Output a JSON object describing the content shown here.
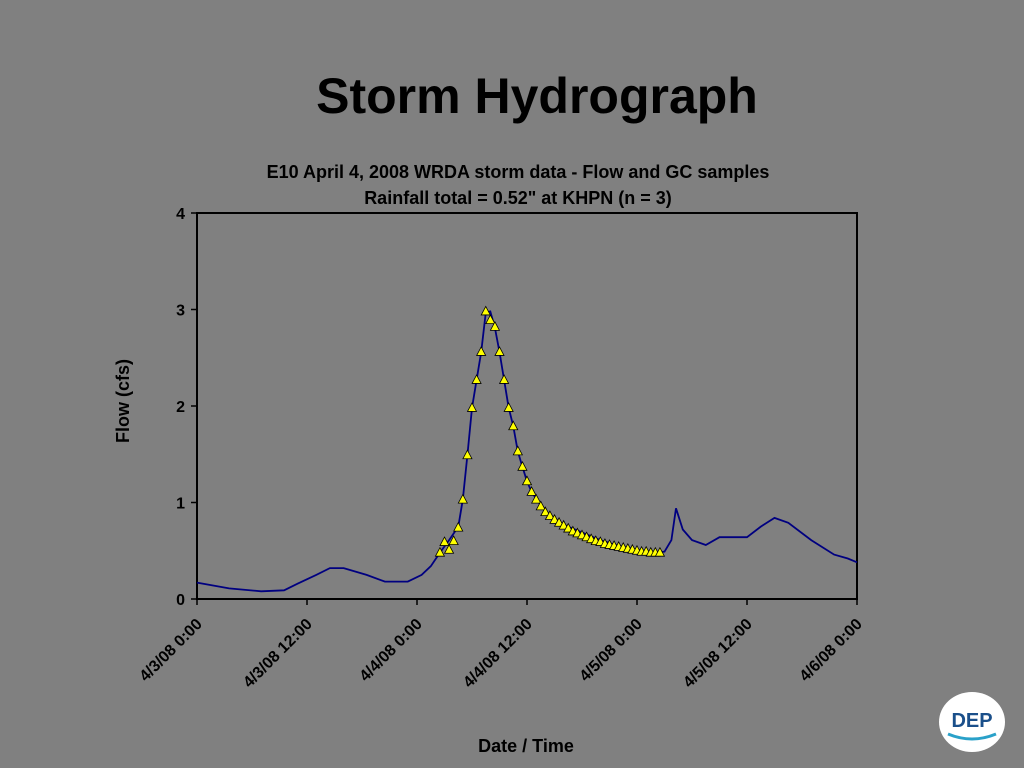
{
  "slide_title": "Storm Hydrograph",
  "logo_text": "DEP",
  "chart_data": {
    "type": "line",
    "title": "E10  April 4, 2008  WRDA storm data - Flow and GC samples",
    "subtitle": "Rainfall total = 0.52\" at KHPN  (n = 3)",
    "x_label": "Date / Time",
    "y_label": "Flow (cfs)",
    "xlim": [
      "4/3/08 0:00",
      "4/6/08 0:00"
    ],
    "xticks": [
      "4/3/08 0:00",
      "4/3/08 12:00",
      "4/4/08 0:00",
      "4/4/08 12:00",
      "4/5/08 0:00",
      "4/5/08 12:00",
      "4/6/08 0:00"
    ],
    "ylim": [
      0,
      4
    ],
    "yticks": [
      0,
      1,
      2,
      3,
      4
    ],
    "grid": false,
    "series": [
      {
        "color": "#000080",
        "marker": "none",
        "x": [
          "4/3/08 0:00",
          "4/3/08 3:30",
          "4/3/08 7:00",
          "4/3/08 9:30",
          "4/3/08 11:00",
          "4/3/08 13:00",
          "4/3/08 14:30",
          "4/3/08 16:00",
          "4/3/08 18:30",
          "4/3/08 20:30",
          "4/3/08 23:00",
          "4/4/08 0:30",
          "4/4/08 1:30",
          "4/4/08 2:30",
          "4/4/08 3:30",
          "4/4/08 4:30",
          "4/4/08 5:00",
          "4/4/08 5:30",
          "4/4/08 6:00",
          "4/4/08 6:30",
          "4/4/08 7:00",
          "4/4/08 7:30",
          "4/4/08 8:00",
          "4/4/08 8:30",
          "4/4/08 9:00",
          "4/4/08 9:30",
          "4/4/08 10:00",
          "4/4/08 10:30",
          "4/4/08 11:00",
          "4/4/08 11:30",
          "4/4/08 12:00",
          "4/4/08 12:30",
          "4/4/08 13:30",
          "4/4/08 14:30",
          "4/4/08 16:00",
          "4/4/08 18:00",
          "4/4/08 20:00",
          "4/4/08 22:00",
          "4/5/08 0:00",
          "4/5/08 2:00",
          "4/5/08 3:00",
          "4/5/08 3:45",
          "4/5/08 4:15",
          "4/5/08 5:00",
          "4/5/08 6:00",
          "4/5/08 7:30",
          "4/5/08 9:00",
          "4/5/08 12:00",
          "4/5/08 13:30",
          "4/5/08 15:00",
          "4/5/08 16:30",
          "4/5/08 19:00",
          "4/5/08 21:30",
          "4/5/08 23:00",
          "4/6/08 0:00"
        ],
        "values": [
          0.17,
          0.11,
          0.08,
          0.09,
          0.16,
          0.25,
          0.32,
          0.32,
          0.25,
          0.18,
          0.18,
          0.25,
          0.34,
          0.48,
          0.61,
          0.75,
          1.03,
          1.49,
          1.98,
          2.27,
          2.56,
          2.97,
          2.98,
          2.81,
          2.56,
          2.27,
          1.98,
          1.79,
          1.53,
          1.37,
          1.22,
          1.11,
          0.97,
          0.87,
          0.77,
          0.69,
          0.61,
          0.55,
          0.51,
          0.48,
          0.49,
          0.61,
          0.94,
          0.72,
          0.61,
          0.56,
          0.64,
          0.64,
          0.75,
          0.84,
          0.79,
          0.61,
          0.46,
          0.42,
          0.38
        ]
      },
      {
        "color": "#ffff00",
        "marker": "triangle",
        "x": [
          "4/4/08 2:30",
          "4/4/08 3:00",
          "4/4/08 3:30",
          "4/4/08 4:00",
          "4/4/08 4:30",
          "4/4/08 5:00",
          "4/4/08 5:30",
          "4/4/08 6:00",
          "4/4/08 6:30",
          "4/4/08 7:00",
          "4/4/08 7:30",
          "4/4/08 8:00",
          "4/4/08 8:30",
          "4/4/08 9:00",
          "4/4/08 9:30",
          "4/4/08 10:00",
          "4/4/08 10:30",
          "4/4/08 11:00",
          "4/4/08 11:30",
          "4/4/08 12:00",
          "4/4/08 12:30",
          "4/4/08 13:00",
          "4/4/08 13:30",
          "4/4/08 14:00",
          "4/4/08 14:30",
          "4/4/08 15:00",
          "4/4/08 15:30",
          "4/4/08 16:00",
          "4/4/08 16:30",
          "4/4/08 17:00",
          "4/4/08 17:30",
          "4/4/08 18:00",
          "4/4/08 18:30",
          "4/4/08 19:00",
          "4/4/08 19:30",
          "4/4/08 20:00",
          "4/4/08 20:30",
          "4/4/08 21:00",
          "4/4/08 21:30",
          "4/4/08 22:00",
          "4/4/08 22:30",
          "4/4/08 23:00",
          "4/4/08 23:30",
          "4/5/08 0:00",
          "4/5/08 0:30",
          "4/5/08 1:00",
          "4/5/08 1:30",
          "4/5/08 2:00",
          "4/5/08 2:30"
        ],
        "values": [
          0.48,
          0.59,
          0.51,
          0.6,
          0.74,
          1.03,
          1.49,
          1.98,
          2.27,
          2.56,
          2.98,
          2.89,
          2.82,
          2.56,
          2.27,
          1.98,
          1.79,
          1.53,
          1.37,
          1.22,
          1.11,
          1.03,
          0.96,
          0.9,
          0.86,
          0.82,
          0.79,
          0.76,
          0.73,
          0.7,
          0.68,
          0.66,
          0.64,
          0.62,
          0.6,
          0.59,
          0.57,
          0.56,
          0.55,
          0.54,
          0.53,
          0.52,
          0.51,
          0.5,
          0.49,
          0.49,
          0.48,
          0.48,
          0.48
        ]
      }
    ]
  }
}
